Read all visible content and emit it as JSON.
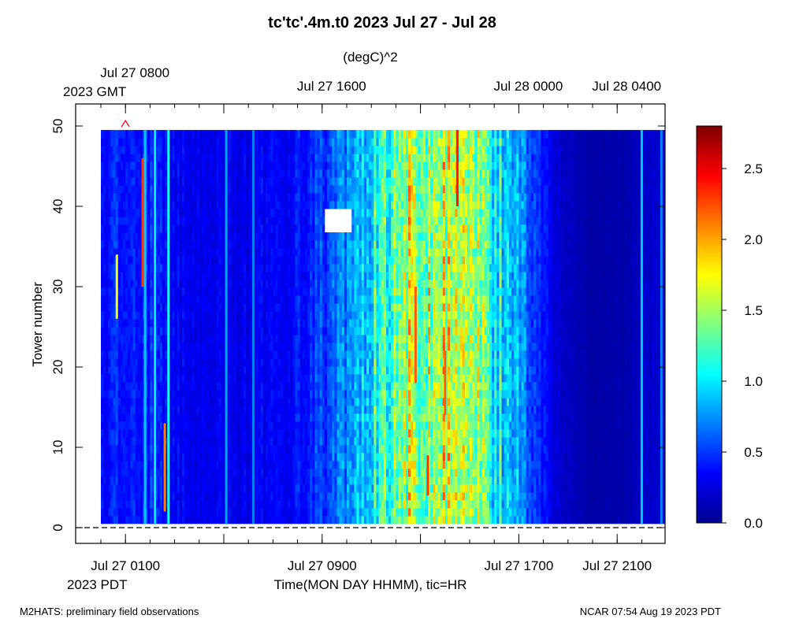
{
  "footer": {
    "left": "M2HATS: preliminary field observations",
    "right": "NCAR 07:54 Aug 19 2023 PDT"
  },
  "colors": {
    "colormap": [
      "#00008f",
      "#0000ff",
      "#0080ff",
      "#00ffff",
      "#80ff80",
      "#ffff00",
      "#ff8000",
      "#ff0000",
      "#800000"
    ],
    "marker": "#ff0000"
  },
  "chart_data": {
    "type": "heatmap",
    "title": "tc'tc'.4m.t0 2023 Jul 27 - Jul 28",
    "units": "(degC)^2",
    "xlabel": "Time(MON DAY HHMM), tic=HR",
    "ylabel": "Tower number",
    "xlim": [
      0,
      24
    ],
    "ylim": [
      0,
      50
    ],
    "x_unit": "hours after Jul 27 0000 PDT",
    "bottom_axis": {
      "timezone_label": "2023 PDT",
      "tick_labels": [
        {
          "x": 1,
          "label": "Jul 27 0100"
        },
        {
          "x": 9,
          "label": "Jul 27 0900"
        },
        {
          "x": 17,
          "label": "Jul 27 1700"
        },
        {
          "x": 21,
          "label": "Jul 27 2100"
        }
      ],
      "major_ticks": [
        1,
        5,
        9,
        13,
        17,
        21
      ]
    },
    "top_axis": {
      "timezone_label": "2023 GMT",
      "tick_labels": [
        {
          "x": 1,
          "label": "Jul 27 0800"
        },
        {
          "x": 9,
          "label": "Jul 27 1600"
        },
        {
          "x": 17,
          "label": "Jul 28 0000"
        },
        {
          "x": 21,
          "label": "Jul 28 0400"
        }
      ]
    },
    "y_ticks": [
      0,
      10,
      20,
      30,
      40,
      50
    ],
    "colorbar": {
      "range": [
        0,
        2.8
      ],
      "tick_values": [
        0.0,
        0.5,
        1.0,
        1.5,
        2.0,
        2.5
      ],
      "tick_labels": [
        "0.0",
        "0.5",
        "1.0",
        "1.5",
        "2.0",
        "2.5"
      ]
    },
    "heatmap_extent": {
      "x": [
        0,
        24
      ],
      "y": [
        0.5,
        49.5
      ]
    },
    "missing_region": {
      "x": [
        9.1,
        10.2
      ],
      "y": [
        37,
        40
      ]
    },
    "intensity_profile": [
      {
        "x": 0.0,
        "v": 0.35
      },
      {
        "x": 0.6,
        "v": 0.45
      },
      {
        "x": 1.2,
        "v": 0.4
      },
      {
        "x": 2.0,
        "v": 0.45
      },
      {
        "x": 3.0,
        "v": 0.35
      },
      {
        "x": 4.5,
        "v": 0.3
      },
      {
        "x": 6.0,
        "v": 0.3
      },
      {
        "x": 7.5,
        "v": 0.35
      },
      {
        "x": 8.5,
        "v": 0.45
      },
      {
        "x": 9.5,
        "v": 0.6
      },
      {
        "x": 10.5,
        "v": 0.9
      },
      {
        "x": 11.5,
        "v": 1.25
      },
      {
        "x": 12.5,
        "v": 1.5
      },
      {
        "x": 13.5,
        "v": 1.55
      },
      {
        "x": 14.5,
        "v": 1.5
      },
      {
        "x": 15.5,
        "v": 1.3
      },
      {
        "x": 16.3,
        "v": 1.0
      },
      {
        "x": 17.0,
        "v": 0.75
      },
      {
        "x": 17.8,
        "v": 0.5
      },
      {
        "x": 18.5,
        "v": 0.2
      },
      {
        "x": 20.0,
        "v": 0.08
      },
      {
        "x": 21.5,
        "v": 0.1
      },
      {
        "x": 22.5,
        "v": 0.2
      },
      {
        "x": 24.0,
        "v": 0.18
      }
    ],
    "spikes": [
      {
        "x": 0.65,
        "v": 1.7,
        "y": [
          26,
          34
        ]
      },
      {
        "x": 1.7,
        "v": 2.3,
        "y": [
          30,
          46
        ]
      },
      {
        "x": 1.8,
        "v": 0.9,
        "y": [
          0,
          50
        ]
      },
      {
        "x": 2.6,
        "v": 2.1,
        "y": [
          2,
          13
        ]
      },
      {
        "x": 2.75,
        "v": 1.1,
        "y": [
          0,
          50
        ]
      },
      {
        "x": 2.2,
        "v": 1.0,
        "y": [
          0,
          50
        ]
      },
      {
        "x": 5.1,
        "v": 0.8,
        "y": [
          0,
          50
        ]
      },
      {
        "x": 6.2,
        "v": 0.7,
        "y": [
          0,
          50
        ]
      },
      {
        "x": 12.8,
        "v": 2.2,
        "y": [
          18,
          30
        ]
      },
      {
        "x": 13.3,
        "v": 2.3,
        "y": [
          4,
          9
        ]
      },
      {
        "x": 14.5,
        "v": 2.4,
        "y": [
          40,
          50
        ]
      },
      {
        "x": 14.0,
        "v": 2.2,
        "y": [
          14,
          22
        ]
      },
      {
        "x": 22.0,
        "v": 0.9,
        "y": [
          0,
          50
        ]
      },
      {
        "x": 22.8,
        "v": 0.7,
        "y": [
          0,
          50
        ]
      }
    ],
    "reference_line": {
      "y": 0,
      "style": "dashed"
    },
    "marker": {
      "x": 1,
      "y": 50,
      "shape": "triangle",
      "color": "#ff0000"
    }
  }
}
